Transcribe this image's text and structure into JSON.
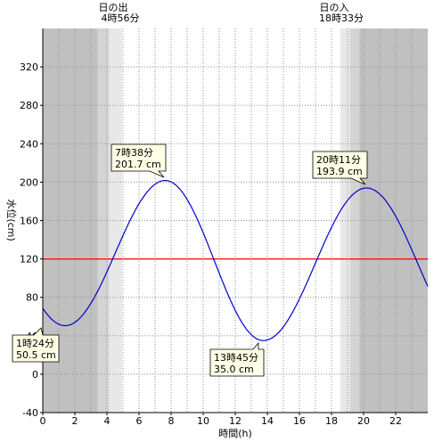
{
  "chart_data": {
    "type": "line",
    "xlabel": "時間(h)",
    "ylabel": "水位(cm)",
    "xlim": [
      0,
      24
    ],
    "ylim": [
      -40,
      360
    ],
    "x_ticks": [
      0,
      2,
      4,
      6,
      8,
      10,
      12,
      14,
      16,
      18,
      20,
      22
    ],
    "x_tick_labels": [
      "0",
      "2",
      "4",
      "6",
      "8",
      "10",
      "12",
      "14",
      "16",
      "18",
      "20",
      "22"
    ],
    "y_ticks": [
      -40,
      0,
      40,
      80,
      120,
      160,
      200,
      240,
      280,
      320
    ],
    "y_tick_labels": [
      "-40",
      "0",
      "40",
      "80",
      "120",
      "160",
      "200",
      "240",
      "280",
      "320"
    ],
    "grid": true,
    "series": [
      {
        "color": "#0000cc",
        "extrema": [
          {
            "x": 1.4,
            "y": 50.5
          },
          {
            "x": 7.633,
            "y": 201.7
          },
          {
            "x": 13.75,
            "y": 35.0
          },
          {
            "x": 20.183,
            "y": 193.9
          }
        ],
        "start_y": 71,
        "end_y": 89
      }
    ],
    "reference_line": {
      "y": 120,
      "color": "#ff0000"
    },
    "sun": {
      "sunrise": {
        "label": "日の出",
        "time": "4時56分",
        "hour": 4.933
      },
      "sunset": {
        "label": "日の入",
        "time": "18時33分",
        "hour": 18.55
      }
    },
    "annotations": [
      {
        "time": "1時24分",
        "value": "50.5 cm"
      },
      {
        "time": "7時38分",
        "value": "201.7 cm"
      },
      {
        "time": "13時45分",
        "value": "35.0 cm"
      },
      {
        "time": "20時11分",
        "value": "193.9 cm"
      }
    ],
    "colors": {
      "night": "#c0c0c0",
      "twilight1": "#d4d4d4",
      "twilight2": "#e8e8e8",
      "line": "#0000cc",
      "reference": "#ff0000"
    }
  }
}
